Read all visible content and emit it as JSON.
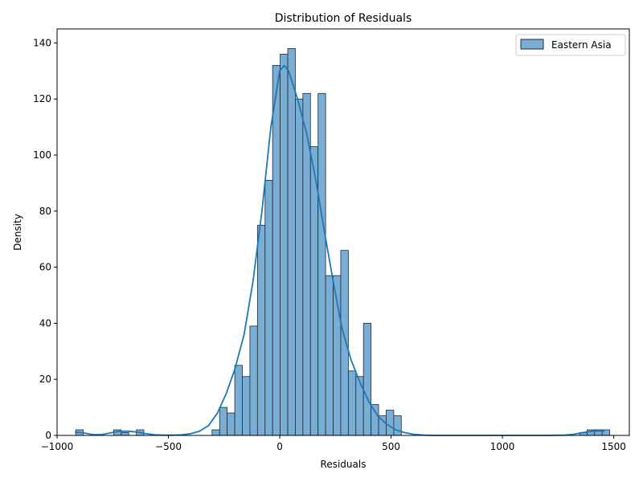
{
  "chart_data": {
    "type": "bar",
    "title": "Distribution of Residuals",
    "xlabel": "Residuals",
    "ylabel": "Density",
    "xlim": [
      -1000,
      1570
    ],
    "ylim": [
      0,
      145
    ],
    "x_ticks": [
      -1000,
      -500,
      0,
      500,
      1000,
      1500
    ],
    "y_ticks": [
      0,
      20,
      40,
      60,
      80,
      100,
      120,
      140
    ],
    "bin_width": 34,
    "bins": [
      {
        "x": -916,
        "count": 2
      },
      {
        "x": -882,
        "count": 0
      },
      {
        "x": -848,
        "count": 0
      },
      {
        "x": -814,
        "count": 0
      },
      {
        "x": -780,
        "count": 0
      },
      {
        "x": -746,
        "count": 2
      },
      {
        "x": -712,
        "count": 1
      },
      {
        "x": -678,
        "count": 0
      },
      {
        "x": -644,
        "count": 2
      },
      {
        "x": -610,
        "count": 0
      },
      {
        "x": -576,
        "count": 0
      },
      {
        "x": -542,
        "count": 0
      },
      {
        "x": -508,
        "count": 0
      },
      {
        "x": -474,
        "count": 0
      },
      {
        "x": -440,
        "count": 0
      },
      {
        "x": -406,
        "count": 0
      },
      {
        "x": -372,
        "count": 0
      },
      {
        "x": -338,
        "count": 0
      },
      {
        "x": -304,
        "count": 2
      },
      {
        "x": -270,
        "count": 10
      },
      {
        "x": -236,
        "count": 8
      },
      {
        "x": -202,
        "count": 25
      },
      {
        "x": -168,
        "count": 21
      },
      {
        "x": -134,
        "count": 39
      },
      {
        "x": -100,
        "count": 75
      },
      {
        "x": -66,
        "count": 91
      },
      {
        "x": -32,
        "count": 132
      },
      {
        "x": 2,
        "count": 136
      },
      {
        "x": 36,
        "count": 138
      },
      {
        "x": 70,
        "count": 120
      },
      {
        "x": 104,
        "count": 122
      },
      {
        "x": 138,
        "count": 103
      },
      {
        "x": 172,
        "count": 122
      },
      {
        "x": 206,
        "count": 57
      },
      {
        "x": 240,
        "count": 57
      },
      {
        "x": 274,
        "count": 66
      },
      {
        "x": 308,
        "count": 23
      },
      {
        "x": 342,
        "count": 21
      },
      {
        "x": 376,
        "count": 40
      },
      {
        "x": 410,
        "count": 11
      },
      {
        "x": 444,
        "count": 7
      },
      {
        "x": 478,
        "count": 9
      },
      {
        "x": 512,
        "count": 7
      },
      {
        "x": 1346,
        "count": 1
      },
      {
        "x": 1380,
        "count": 2
      },
      {
        "x": 1414,
        "count": 2
      },
      {
        "x": 1448,
        "count": 2
      }
    ],
    "kde": {
      "x": [
        -920,
        -880,
        -840,
        -800,
        -760,
        -720,
        -680,
        -640,
        -600,
        -560,
        -520,
        -480,
        -440,
        -400,
        -360,
        -320,
        -280,
        -240,
        -200,
        -160,
        -120,
        -80,
        -40,
        0,
        20,
        40,
        80,
        120,
        160,
        200,
        240,
        280,
        320,
        360,
        400,
        440,
        480,
        520,
        560,
        600,
        650,
        700,
        800,
        900,
        1000,
        1100,
        1200,
        1280,
        1320,
        1360,
        1400,
        1440,
        1460
      ],
      "y": [
        1.2,
        0.9,
        0.3,
        0.3,
        0.9,
        1.5,
        1.5,
        1.2,
        0.6,
        0.2,
        0.1,
        0.1,
        0.2,
        0.6,
        1.5,
        3.5,
        8,
        15,
        24,
        36,
        55,
        80,
        110,
        130,
        132,
        130,
        120,
        108,
        92,
        73,
        55,
        38,
        27,
        19,
        12,
        7,
        4,
        2,
        1,
        0.4,
        0.1,
        0,
        0,
        0,
        0,
        0,
        0,
        0.1,
        0.4,
        1.0,
        1.5,
        1.6,
        1.5
      ]
    },
    "series": [
      {
        "name": "Eastern Asia"
      }
    ],
    "legend_position": "top-right",
    "grid": false,
    "colors": {
      "bar_fill": "#7aadd3",
      "bar_edge": "#1f2a36",
      "kde_line": "#1f77b4"
    }
  }
}
